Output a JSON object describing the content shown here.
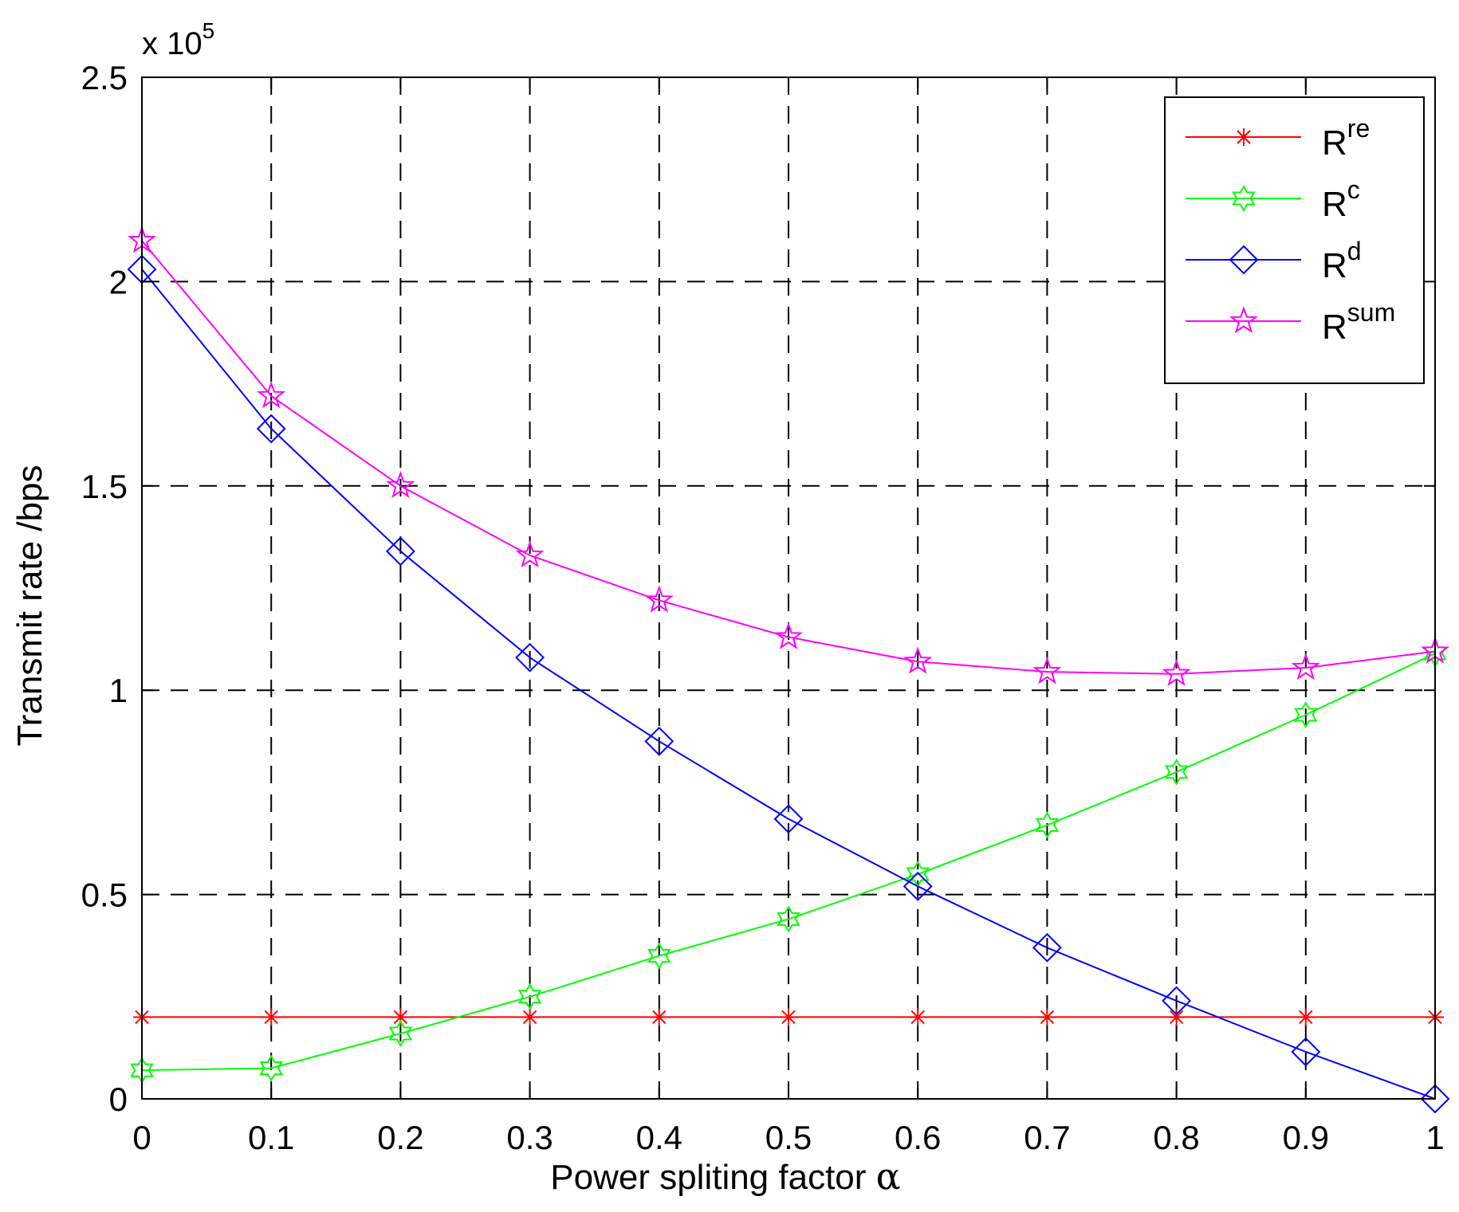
{
  "chart_data": {
    "type": "line",
    "xlabel": "Power spliting factor",
    "xlabel_symbol": "α",
    "ylabel": "Transmit rate /bps",
    "y_exponent_prefix": "x 10",
    "y_exponent_power": "5",
    "xlim": [
      0,
      1
    ],
    "ylim": [
      0,
      2.5
    ],
    "x_ticks": [
      "0",
      "0.1",
      "0.2",
      "0.3",
      "0.4",
      "0.5",
      "0.6",
      "0.7",
      "0.8",
      "0.9",
      "1"
    ],
    "y_ticks": [
      "0",
      "0.5",
      "1",
      "1.5",
      "2",
      "2.5"
    ],
    "grid": true,
    "legend_position": "top-right",
    "x": [
      0,
      0.1,
      0.2,
      0.3,
      0.4,
      0.5,
      0.6,
      0.7,
      0.8,
      0.9,
      1.0
    ],
    "series": [
      {
        "base": "R",
        "sup": "re",
        "color": "#ff0000",
        "marker": "asterisk",
        "values": [
          0.2,
          0.2,
          0.2,
          0.2,
          0.2,
          0.2,
          0.2,
          0.2,
          0.2,
          0.2,
          0.2
        ]
      },
      {
        "base": "R",
        "sup": "c",
        "color": "#00ff00",
        "marker": "hexagram",
        "values": [
          0.07,
          0.075,
          0.16,
          0.25,
          0.35,
          0.44,
          0.55,
          0.67,
          0.8,
          0.94,
          1.09
        ]
      },
      {
        "base": "R",
        "sup": "d",
        "color": "#0000ff",
        "marker": "diamond",
        "values": [
          2.03,
          1.64,
          1.34,
          1.08,
          0.875,
          0.685,
          0.52,
          0.37,
          0.24,
          0.115,
          0.0
        ]
      },
      {
        "base": "R",
        "sup": "sum",
        "color": "#ff00ff",
        "marker": "pentagram",
        "values": [
          2.1,
          1.72,
          1.5,
          1.33,
          1.22,
          1.13,
          1.07,
          1.045,
          1.04,
          1.055,
          1.095
        ]
      }
    ]
  }
}
